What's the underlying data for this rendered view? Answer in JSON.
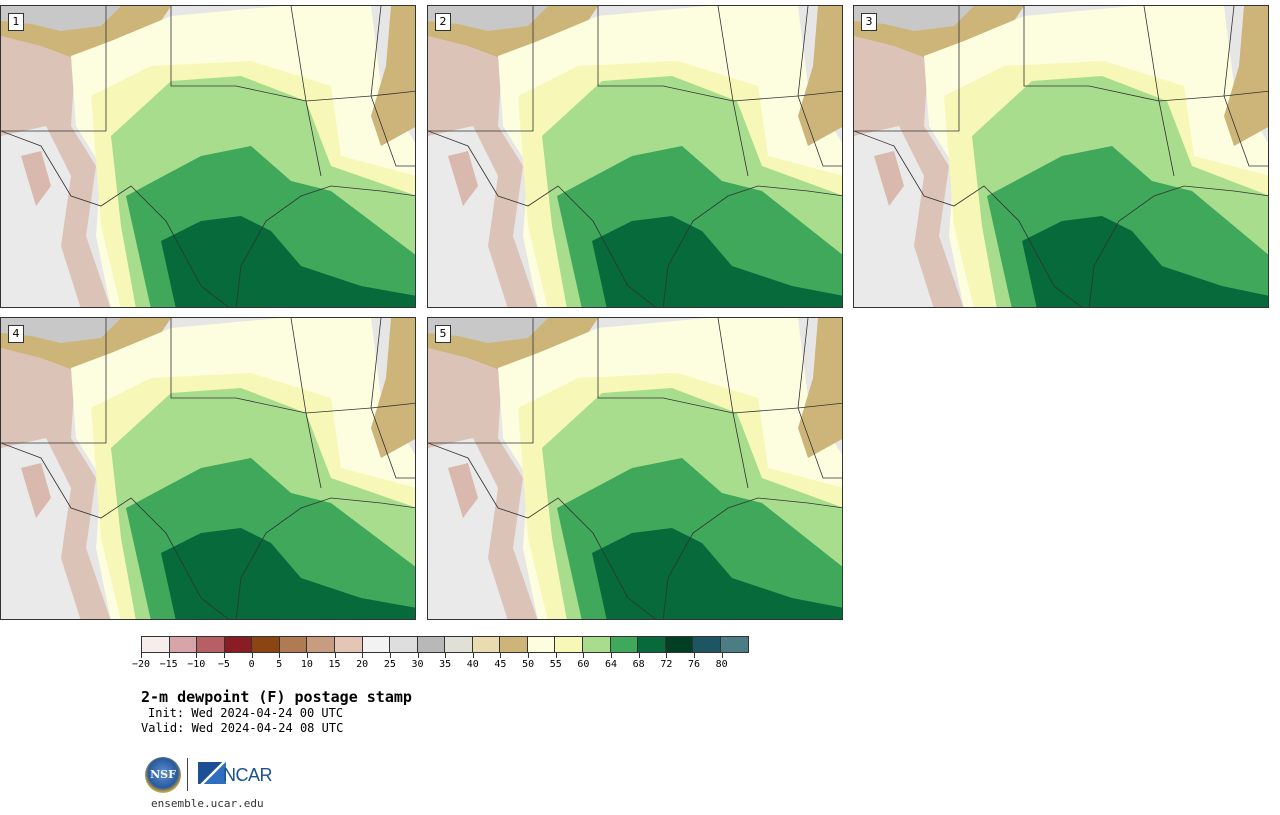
{
  "panels": [
    {
      "label": "1",
      "mode": "a"
    },
    {
      "label": "2",
      "mode": "b"
    },
    {
      "label": "3",
      "mode": "c"
    },
    {
      "label": "4",
      "mode": "a"
    },
    {
      "label": "5",
      "mode": "b"
    }
  ],
  "colorbar": {
    "colors": [
      "#f7eded",
      "#d7a4a8",
      "#b65f64",
      "#8a1d24",
      "#8b4513",
      "#b07a52",
      "#c89c80",
      "#e4c6b6",
      "#f2f2f2",
      "#dedede",
      "#b8b8b8",
      "#e0e0d6",
      "#e8dcb0",
      "#cdb57a",
      "#fdfde0",
      "#f7f8b8",
      "#a9dd8e",
      "#3fa85a",
      "#066a3a",
      "#013e24",
      "#1d5662",
      "#4c7d84"
    ],
    "ticks": [
      "−20",
      "−15",
      "−10",
      "−5",
      "0",
      "5",
      "10",
      "15",
      "20",
      "25",
      "30",
      "35",
      "40",
      "45",
      "50",
      "55",
      "60",
      "64",
      "68",
      "72",
      "76",
      "80"
    ]
  },
  "title": "2-m dewpoint (F) postage stamp",
  "init": "Init: Wed 2024-04-24 00 UTC",
  "valid": "Valid: Wed 2024-04-24 08 UTC",
  "logos": {
    "nsf": "NSF",
    "ncar": "NCAR"
  },
  "url": "ensemble.ucar.edu"
}
